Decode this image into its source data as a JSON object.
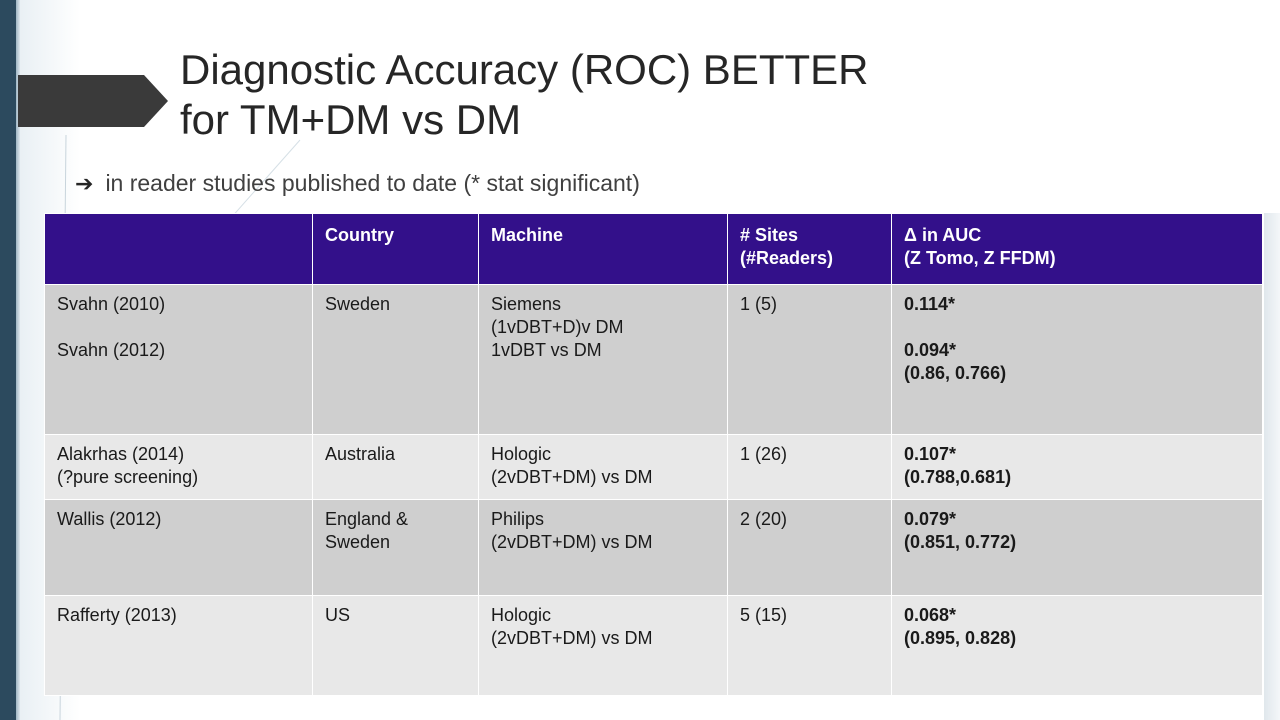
{
  "slide": {
    "title_line1": "Diagnostic Accuracy (ROC) BETTER",
    "title_line2": "for TM+DM vs DM",
    "subtitle_bullet": "➔",
    "subtitle": "in reader studies published to date (* stat significant)"
  },
  "table": {
    "headers": {
      "study": "",
      "country": "Country",
      "machine": "Machine",
      "sites_line1": "# Sites",
      "sites_line2": "(#Readers)",
      "auc_line1": "Δ in  AUC",
      "auc_line2": "(Z Tomo, Z FFDM)"
    },
    "rows": [
      {
        "study_a": "Svahn (2010)",
        "study_b": "Svahn (2012)",
        "country": "Sweden",
        "machine_a": "Siemens",
        "machine_b": "(1vDBT+D)v DM",
        "machine_c": "1vDBT vs DM",
        "sites": "1 (5)",
        "auc_a": "0.114*",
        "auc_b": "0.094*",
        "auc_c": "(0.86, 0.766)"
      },
      {
        "study_a": "Alakrhas (2014)",
        "study_b": "(?pure screening)",
        "country": "Australia",
        "machine_a": "Hologic",
        "machine_b": "(2vDBT+DM) vs DM",
        "sites": "1 (26)",
        "auc_a": "0.107*",
        "auc_b": "(0.788,0.681)"
      },
      {
        "study_a": "Wallis (2012)",
        "country_a": "England &",
        "country_b": "Sweden",
        "machine_a": "Philips",
        "machine_b": "(2vDBT+DM) vs DM",
        "sites": "2 (20)",
        "auc_a": "0.079*",
        "auc_b": "(0.851, 0.772)"
      },
      {
        "study_a": "Rafferty (2013)",
        "country": "US",
        "machine_a": "Hologic",
        "machine_b": "(2vDBT+DM) vs DM",
        "sites": "5 (15)",
        "auc_a": "0.068*",
        "auc_b": "(0.895, 0.828)"
      }
    ]
  },
  "colors": {
    "header_bg": "#33108a",
    "row_dark": "#cfcfcf",
    "row_light": "#e8e8e8",
    "accent_bar": "#2c4a5e"
  }
}
